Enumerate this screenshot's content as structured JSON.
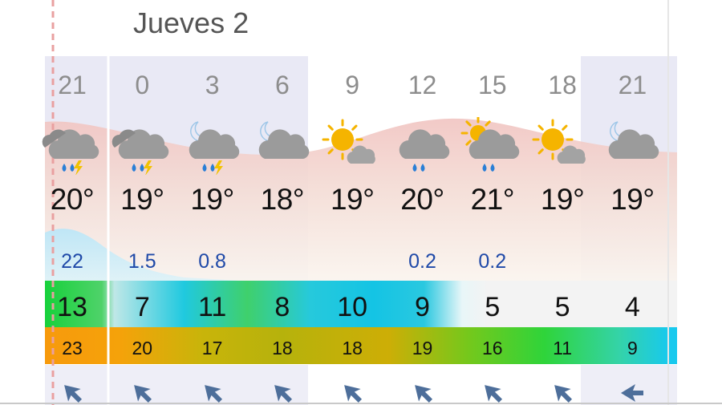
{
  "day_header": {
    "label": "Jueves 2"
  },
  "hours": [
    "21",
    "0",
    "3",
    "6",
    "9",
    "12",
    "15",
    "18",
    "21"
  ],
  "icons": [
    "thunderstorm-rain-icon",
    "thunderstorm-rain-icon",
    "night-thunderstorm-rain-icon",
    "night-cloudy-icon",
    "sun-cloud-icon",
    "rain-cloud-icon",
    "sun-rain-cloud-icon",
    "sun-cloud-icon",
    "night-cloudy-icon"
  ],
  "temperatures": [
    "20°",
    "19°",
    "19°",
    "18°",
    "19°",
    "20°",
    "21°",
    "19°",
    "19°"
  ],
  "precipitation": [
    "22",
    "1.5",
    "0.8",
    "",
    "",
    "0.2",
    "0.2",
    "",
    ""
  ],
  "wind_speed": [
    "13",
    "7",
    "11",
    "8",
    "10",
    "9",
    "5",
    "5",
    "4"
  ],
  "wind_gusts": [
    "23",
    "20",
    "17",
    "18",
    "18",
    "19",
    "16",
    "11",
    "9"
  ],
  "wind_direction_icons": [
    "wind-arrow-nw-icon",
    "wind-arrow-nw-icon",
    "wind-arrow-nw-icon",
    "wind-arrow-nw-icon",
    "wind-arrow-nw-icon",
    "wind-arrow-nw-icon",
    "wind-arrow-nw-icon",
    "wind-arrow-nw-icon",
    "wind-arrow-w-icon"
  ],
  "colors": {
    "night_shade": "#e9e9f5",
    "precip_text": "#1f49a8",
    "arrow": "#4d6e9a",
    "sun": "#f5b400",
    "cloud_dark": "#9b9b9b",
    "rain_drop": "#2a7fd6",
    "lightning": "#f2c200"
  }
}
